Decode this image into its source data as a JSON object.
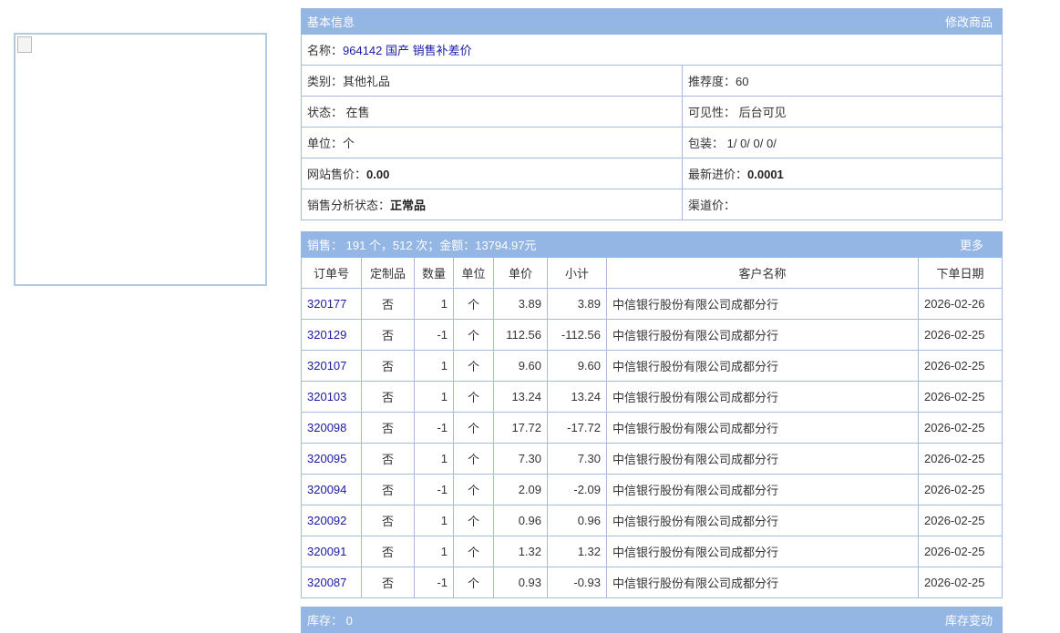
{
  "basic": {
    "title": "基本信息",
    "edit": "修改商品",
    "name_label": "名称：",
    "name": "964142 国产 销售补差价",
    "rows": [
      {
        "l": "类别：",
        "lv": "其他礼品",
        "r": "推荐度：",
        "rv": "60"
      },
      {
        "l": "状态：",
        "lv": " 在售",
        "r": "可见性：",
        "rv": " 后台可见"
      },
      {
        "l": "单位：",
        "lv": "个",
        "r": "包装：",
        "rv": " 1/ 0/ 0/ 0/"
      },
      {
        "l": "网站售价：",
        "lv": "0.00",
        "r": "最新进价：",
        "rv": "0.0001",
        "bold": true
      },
      {
        "l": "销售分析状态：",
        "lv": "正常品",
        "r": "渠道价：",
        "rv": "",
        "bold": true
      }
    ]
  },
  "sales": {
    "summary": "销售： 191 个，512 次；金额：13794.97元",
    "more": "更多",
    "headers": [
      "订单号",
      "定制品",
      "数量",
      "单位",
      "单价",
      "小计",
      "客户名称",
      "下单日期"
    ],
    "rows": [
      [
        "320177",
        "否",
        "1",
        "个",
        "3.89",
        "3.89",
        "中信银行股份有限公司成都分行",
        "2026-02-26"
      ],
      [
        "320129",
        "否",
        "-1",
        "个",
        "112.56",
        "-112.56",
        "中信银行股份有限公司成都分行",
        "2026-02-25"
      ],
      [
        "320107",
        "否",
        "1",
        "个",
        "9.60",
        "9.60",
        "中信银行股份有限公司成都分行",
        "2026-02-25"
      ],
      [
        "320103",
        "否",
        "1",
        "个",
        "13.24",
        "13.24",
        "中信银行股份有限公司成都分行",
        "2026-02-25"
      ],
      [
        "320098",
        "否",
        "-1",
        "个",
        "17.72",
        "-17.72",
        "中信银行股份有限公司成都分行",
        "2026-02-25"
      ],
      [
        "320095",
        "否",
        "1",
        "个",
        "7.30",
        "7.30",
        "中信银行股份有限公司成都分行",
        "2026-02-25"
      ],
      [
        "320094",
        "否",
        "-1",
        "个",
        "2.09",
        "-2.09",
        "中信银行股份有限公司成都分行",
        "2026-02-25"
      ],
      [
        "320092",
        "否",
        "1",
        "个",
        "0.96",
        "0.96",
        "中信银行股份有限公司成都分行",
        "2026-02-25"
      ],
      [
        "320091",
        "否",
        "1",
        "个",
        "1.32",
        "1.32",
        "中信银行股份有限公司成都分行",
        "2026-02-25"
      ],
      [
        "320087",
        "否",
        "-1",
        "个",
        "0.93",
        "-0.93",
        "中信银行股份有限公司成都分行",
        "2026-02-25"
      ]
    ]
  },
  "stock": {
    "summary": "库存： 0",
    "change": "库存变动"
  }
}
